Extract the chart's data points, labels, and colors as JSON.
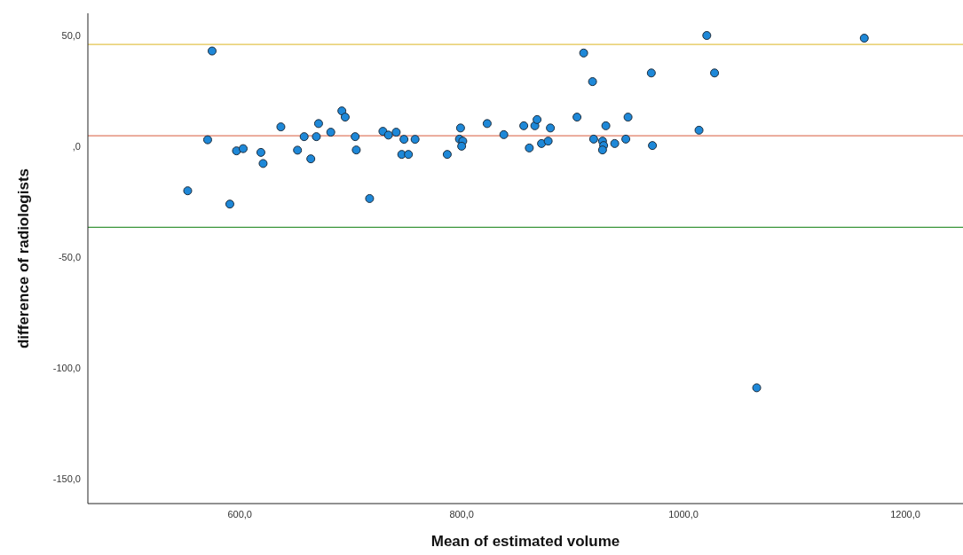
{
  "chart_data": {
    "type": "scatter",
    "xlabel": "Mean of estimated volume",
    "ylabel": "difference of radiologists",
    "xlim": [
      463,
      1252
    ],
    "ylim": [
      -161,
      60
    ],
    "xticks": [
      {
        "value": 600,
        "label": "600,0"
      },
      {
        "value": 800,
        "label": "800,0"
      },
      {
        "value": 1000,
        "label": "1000,0"
      },
      {
        "value": 1200,
        "label": "1200,0"
      }
    ],
    "yticks": [
      {
        "value": -150,
        "label": "-150,0"
      },
      {
        "value": -100,
        "label": "-100,0"
      },
      {
        "value": -50,
        "label": "-50,0"
      },
      {
        "value": 0,
        "label": ",0"
      },
      {
        "value": 50,
        "label": "50,0"
      }
    ],
    "grid": false,
    "legend": false,
    "marker": "circle",
    "ref_lines": [
      {
        "axis": "y",
        "value": 46,
        "color": "#e3c44c"
      },
      {
        "axis": "y",
        "value": 4.8,
        "color": "#e07b62"
      },
      {
        "axis": "y",
        "value": -36.5,
        "color": "#3b963b"
      }
    ],
    "series": [
      {
        "color": "#1e88d8",
        "x": [
          575,
          571,
          553,
          597,
          603,
          591,
          619,
          621,
          637,
          652,
          658,
          664,
          669,
          671,
          682,
          692,
          695,
          704,
          705,
          717,
          729,
          734,
          741,
          748,
          758,
          746,
          752,
          787,
          799,
          798,
          801,
          800,
          823,
          838,
          856,
          861,
          866,
          868,
          872,
          878,
          880,
          904,
          910,
          918,
          919,
          927,
          928,
          927,
          930,
          938,
          948,
          950,
          971,
          972,
          1021,
          1028,
          1014,
          1163,
          1066
        ],
        "values": [
          43,
          3,
          -20,
          -2,
          -1,
          -26,
          -2.7,
          -7.7,
          8.8,
          -1.7,
          4.4,
          -5.6,
          4.4,
          10.3,
          6.4,
          16,
          13.2,
          4.4,
          -1.6,
          -23.5,
          6.8,
          5.1,
          6.4,
          3.2,
          3.2,
          -3.6,
          -3.6,
          -3.6,
          8.3,
          3.3,
          2.4,
          0.1,
          10.3,
          5.3,
          9.3,
          -0.7,
          9.3,
          12.1,
          1.3,
          2.4,
          8.3,
          13.2,
          42.1,
          29.2,
          3.3,
          2.4,
          0.4,
          -1.6,
          9.3,
          1.3,
          3.3,
          13.2,
          33.1,
          0.4,
          50,
          33.1,
          7.3,
          48.8,
          -108.8
        ]
      }
    ]
  }
}
